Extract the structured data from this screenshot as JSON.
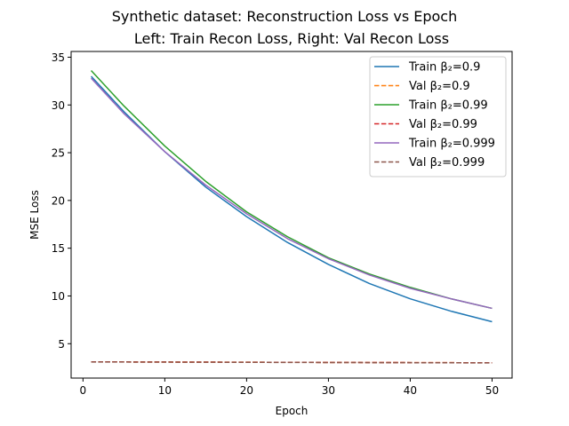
{
  "chart_data": {
    "type": "line",
    "title": "Synthetic dataset: Reconstruction Loss vs Epoch",
    "subtitle": "Left: Train Recon Loss, Right: Val Recon Loss",
    "xlabel": "Epoch",
    "ylabel": "MSE Loss",
    "xlim": [
      -1.45,
      52.45
    ],
    "ylim": [
      1.4,
      35.6
    ],
    "xticks": [
      0,
      10,
      20,
      30,
      40,
      50
    ],
    "yticks": [
      5,
      10,
      15,
      20,
      25,
      30,
      35
    ],
    "grid": false,
    "legend_position": "top-right",
    "series": [
      {
        "name": "Train β₂=0.9",
        "color": "#1f77b4",
        "style": "solid",
        "x": [
          1,
          5,
          10,
          15,
          20,
          25,
          30,
          35,
          40,
          45,
          50
        ],
        "y": [
          33.0,
          29.3,
          25.1,
          21.4,
          18.3,
          15.6,
          13.3,
          11.3,
          9.7,
          8.4,
          7.3
        ]
      },
      {
        "name": "Val β₂=0.9",
        "color": "#ff7f0e",
        "style": "dashed",
        "x": [
          1,
          10,
          20,
          30,
          40,
          50
        ],
        "y": [
          3.1,
          3.08,
          3.06,
          3.04,
          3.02,
          3.0
        ]
      },
      {
        "name": "Train β₂=0.99",
        "color": "#2ca02c",
        "style": "solid",
        "x": [
          1,
          5,
          10,
          15,
          20,
          25,
          30,
          35,
          40,
          45,
          50
        ],
        "y": [
          33.6,
          29.9,
          25.7,
          22.0,
          18.8,
          16.2,
          14.0,
          12.3,
          10.9,
          9.7,
          8.7
        ]
      },
      {
        "name": "Val β₂=0.99",
        "color": "#d62728",
        "style": "dashed",
        "x": [
          1,
          10,
          20,
          30,
          40,
          50
        ],
        "y": [
          3.1,
          3.08,
          3.06,
          3.04,
          3.02,
          3.0
        ]
      },
      {
        "name": "Train β₂=0.999",
        "color": "#9467bd",
        "style": "solid",
        "x": [
          1,
          5,
          10,
          15,
          20,
          25,
          30,
          35,
          40,
          45,
          50
        ],
        "y": [
          32.8,
          29.1,
          25.1,
          21.6,
          18.6,
          16.0,
          13.9,
          12.2,
          10.8,
          9.7,
          8.7
        ]
      },
      {
        "name": "Val β₂=0.999",
        "color": "#8c564b",
        "style": "dashed",
        "x": [
          1,
          10,
          20,
          30,
          40,
          50
        ],
        "y": [
          3.09,
          3.07,
          3.05,
          3.03,
          3.01,
          2.99
        ]
      }
    ]
  }
}
